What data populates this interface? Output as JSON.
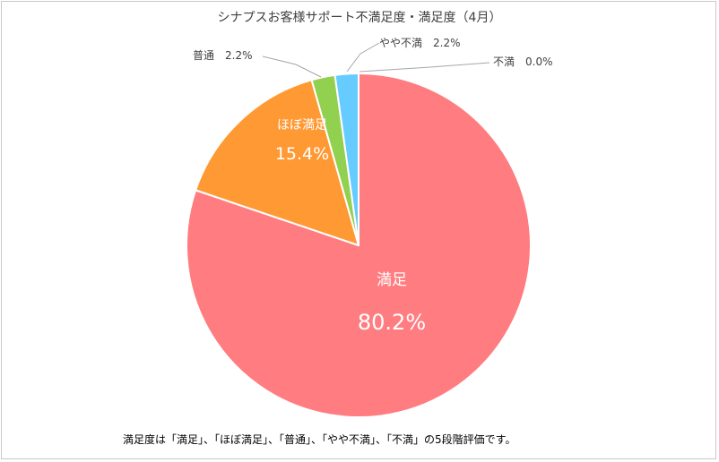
{
  "chart_data": {
    "type": "pie",
    "title": "シナプスお客様サポート不満足度・満足度（4月）",
    "start_angle_deg": 0,
    "direction": "clockwise",
    "slices": [
      {
        "label": "満足",
        "value": 80.2,
        "value_text": "80.2%",
        "color": "#ff7c80",
        "label_position": "inside"
      },
      {
        "label": "ほぼ満足",
        "value": 15.4,
        "value_text": "15.4%",
        "color": "#ff9933",
        "label_position": "inside"
      },
      {
        "label": "普通",
        "value": 2.2,
        "value_text": "2.2%",
        "color": "#92d050",
        "label_position": "outside"
      },
      {
        "label": "やや不満",
        "value": 2.2,
        "value_text": "2.2%",
        "color": "#66ccff",
        "label_position": "outside"
      },
      {
        "label": "不満",
        "value": 0.0,
        "value_text": "0.0%",
        "color": "#a6a6a6",
        "label_position": "outside"
      }
    ],
    "footnote": "満足度は「満足」、「ほぼ満足」、「普通」、「やや不満」、「不満」の5段階評価です。"
  }
}
